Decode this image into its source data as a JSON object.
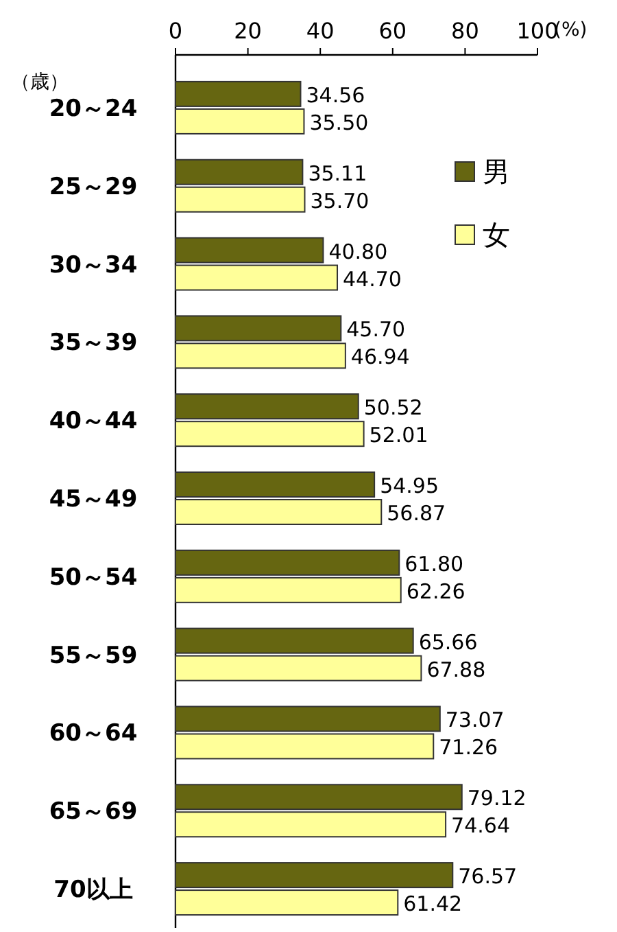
{
  "chart_data": {
    "type": "bar",
    "orientation": "horizontal",
    "xlabel": "(%)",
    "ylabel": "（歳）",
    "categories": [
      "20～24",
      "25～29",
      "30～34",
      "35～39",
      "40～44",
      "45～49",
      "50～54",
      "55～59",
      "60～64",
      "65～69",
      "70以上"
    ],
    "series": [
      {
        "name": "男",
        "color": "#666611",
        "values": [
          34.56,
          35.11,
          40.8,
          45.7,
          50.52,
          54.95,
          61.8,
          65.66,
          73.07,
          79.12,
          76.57
        ],
        "value_labels": [
          "34.56",
          "35.11",
          "40.80",
          "45.70",
          "50.52",
          "54.95",
          "61.80",
          "65.66",
          "73.07",
          "79.12",
          "76.57"
        ]
      },
      {
        "name": "女",
        "color": "#ffff99",
        "values": [
          35.5,
          35.7,
          44.7,
          46.94,
          52.01,
          56.87,
          62.26,
          67.88,
          71.26,
          74.64,
          61.42
        ],
        "value_labels": [
          "35.50",
          "35.70",
          "44.70",
          "46.94",
          "52.01",
          "56.87",
          "62.26",
          "67.88",
          "71.26",
          "74.64",
          "61.42"
        ]
      }
    ],
    "xlim": [
      0,
      100
    ],
    "xticks": [
      0,
      20,
      40,
      60,
      80,
      100
    ],
    "legend": "top right"
  }
}
